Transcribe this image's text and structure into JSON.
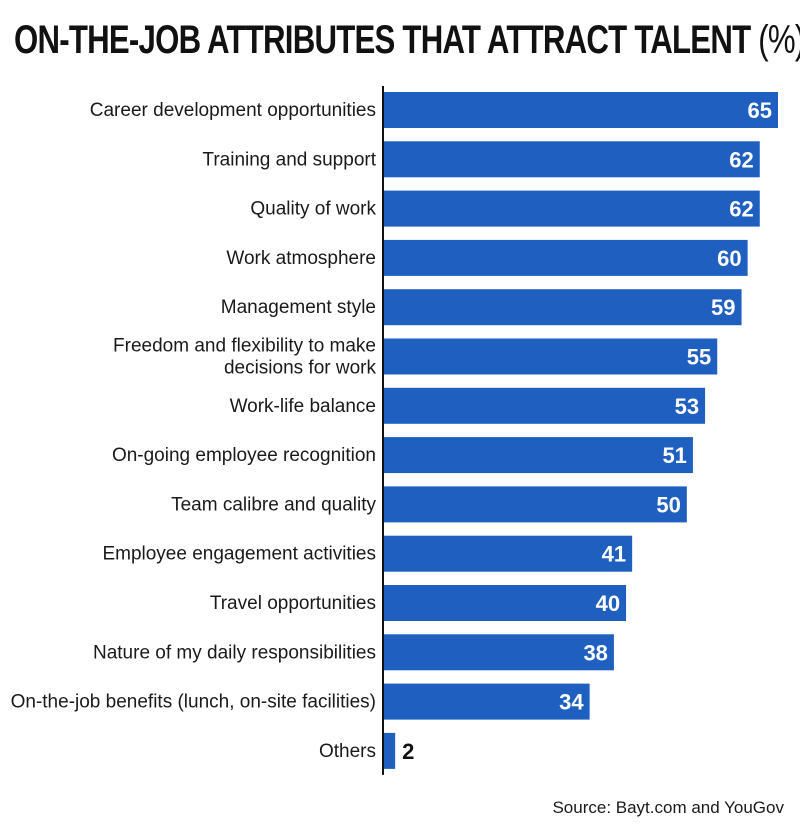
{
  "header": {
    "title": "ON-THE-JOB ATTRIBUTES THAT ATTRACT TALENT",
    "title_suffix": " (%)"
  },
  "footer": {
    "source": "Source: Bayt.com and YouGov"
  },
  "chart_data": {
    "type": "bar",
    "orientation": "horizontal",
    "title": "ON-THE-JOB ATTRIBUTES THAT ATTRACT TALENT (%)",
    "categories": [
      "Career development opportunities",
      "Training and support",
      "Quality of work",
      "Work atmosphere",
      "Management style",
      "Freedom and flexibility to make decisions for work",
      "Work-life balance",
      "On-going employee recognition",
      "Team calibre and quality",
      "Employee engagement activities",
      "Travel opportunities",
      "Nature of my daily responsibilities",
      "On-the-job benefits (lunch, on-site facilities)",
      "Others"
    ],
    "category_lines": [
      [
        "Career development opportunities"
      ],
      [
        "Training and support"
      ],
      [
        "Quality of work"
      ],
      [
        "Work atmosphere"
      ],
      [
        "Management style"
      ],
      [
        "Freedom and flexibility to make",
        "decisions for work"
      ],
      [
        "Work-life balance"
      ],
      [
        "On-going employee recognition"
      ],
      [
        "Team calibre and quality"
      ],
      [
        "Employee engagement activities"
      ],
      [
        "Travel opportunities"
      ],
      [
        "Nature of my daily responsibilities"
      ],
      [
        "On-the-job benefits (lunch, on-site facilities)"
      ],
      [
        "Others"
      ]
    ],
    "values": [
      65,
      62,
      62,
      60,
      59,
      55,
      53,
      51,
      50,
      41,
      40,
      38,
      34,
      2
    ],
    "xlim": [
      0,
      65
    ],
    "grid": false,
    "legend": "none",
    "data_labels": true,
    "bar_color": "#1f5fbf",
    "label_color_inside": "#ffffff",
    "label_color_outside": "#111111",
    "axis_color": "#111111"
  }
}
